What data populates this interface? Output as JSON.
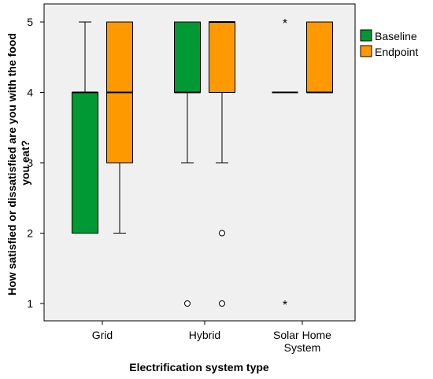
{
  "chart_data": {
    "type": "boxplot",
    "xlabel": "Electrification system type",
    "ylabel": "How satisfied or dissatisfied are you with the food you eat?",
    "ylabel_lines": [
      "How satisfied or dissatisfied are you with the food",
      "you eat?"
    ],
    "ylim": [
      0.55,
      5.45
    ],
    "yticks": [
      1,
      2,
      3,
      4,
      5
    ],
    "grid": false,
    "legend_position": "right",
    "categories": [
      {
        "label_lines": [
          "Grid"
        ]
      },
      {
        "label_lines": [
          "Hybrid"
        ]
      },
      {
        "label_lines": [
          "Solar Home",
          "System"
        ]
      }
    ],
    "series": [
      {
        "name": "Baseline",
        "color": "#009933",
        "boxes": [
          {
            "whisker_low": 2,
            "q1": 2,
            "median": 4,
            "q3": 4,
            "whisker_high": 5,
            "outliers": [],
            "extremes": []
          },
          {
            "whisker_low": 3,
            "q1": 4,
            "median": 4,
            "q3": 5,
            "whisker_high": 5,
            "outliers": [
              1
            ],
            "extremes": []
          },
          {
            "whisker_low": 4,
            "q1": 4,
            "median": 4,
            "q3": 4,
            "whisker_high": 4,
            "outliers": [],
            "extremes": [
              5,
              1
            ]
          }
        ]
      },
      {
        "name": "Endpoint",
        "color": "#ff9900",
        "boxes": [
          {
            "whisker_low": 2,
            "q1": 3,
            "median": 4,
            "q3": 5,
            "whisker_high": 5,
            "outliers": [],
            "extremes": []
          },
          {
            "whisker_low": 3,
            "q1": 4,
            "median": 5,
            "q3": 5,
            "whisker_high": 5,
            "outliers": [
              2,
              1
            ],
            "extremes": []
          },
          {
            "whisker_low": 4,
            "q1": 4,
            "median": 4,
            "q3": 5,
            "whisker_high": 5,
            "outliers": [],
            "extremes": []
          }
        ]
      }
    ]
  }
}
